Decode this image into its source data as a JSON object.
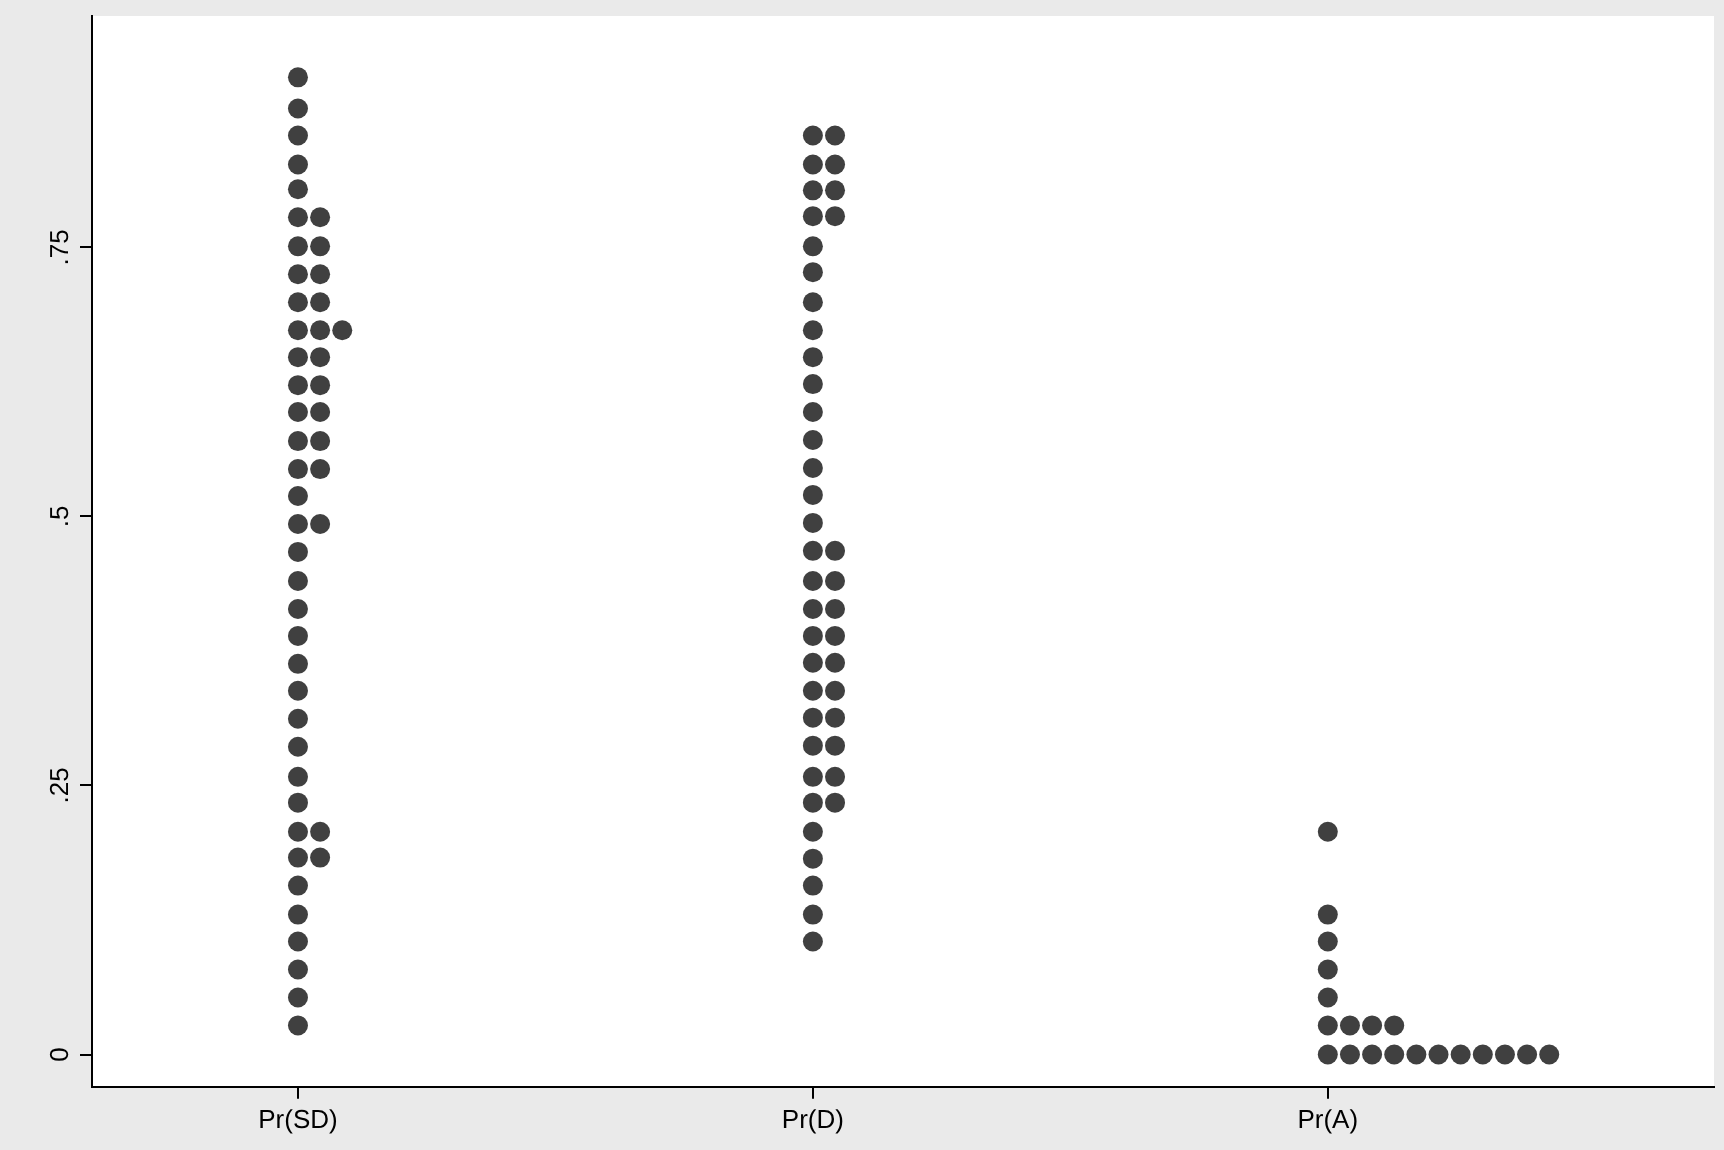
{
  "chart_data": {
    "type": "scatter",
    "marker": "circle",
    "grid": false,
    "legend": false,
    "categories": [
      "Pr(SD)",
      "Pr(D)",
      "Pr(A)"
    ],
    "ylim": [
      -0.03,
      0.965
    ],
    "yticks": [
      {
        "value": 0,
        "label": "0"
      },
      {
        "value": 0.25,
        "label": ".25"
      },
      {
        "value": 0.5,
        "label": ".5"
      },
      {
        "value": 0.75,
        "label": ".75"
      }
    ],
    "series": [
      {
        "color": "#404040",
        "x": [
          "Pr(SD)",
          "Pr(SD)",
          "Pr(SD)",
          "Pr(SD)",
          "Pr(SD)",
          "Pr(SD)",
          "Pr(SD)",
          "Pr(SD)",
          "Pr(SD)",
          "Pr(SD)",
          "Pr(SD)",
          "Pr(SD)",
          "Pr(SD)",
          "Pr(SD)",
          "Pr(SD)",
          "Pr(SD)",
          "Pr(SD)",
          "Pr(SD)",
          "Pr(SD)",
          "Pr(SD)",
          "Pr(SD)",
          "Pr(SD)",
          "Pr(SD)",
          "Pr(SD)",
          "Pr(SD)",
          "Pr(SD)",
          "Pr(SD)",
          "Pr(SD)",
          "Pr(SD)",
          "Pr(SD)",
          "Pr(SD)",
          "Pr(SD)",
          "Pr(SD)",
          "Pr(SD)",
          "Pr(SD)",
          "Pr(SD)",
          "Pr(SD)",
          "Pr(SD)",
          "Pr(SD)",
          "Pr(SD)",
          "Pr(SD)",
          "Pr(SD)",
          "Pr(SD)",
          "Pr(SD)",
          "Pr(SD)",
          "Pr(SD)",
          "Pr(SD)",
          "Pr(SD)",
          "Pr(SD)"
        ],
        "values": [
          0.908,
          0.879,
          0.854,
          0.827,
          0.804,
          0.778,
          0.778,
          0.751,
          0.751,
          0.725,
          0.725,
          0.699,
          0.699,
          0.673,
          0.673,
          0.673,
          0.648,
          0.648,
          0.622,
          0.622,
          0.597,
          0.597,
          0.57,
          0.57,
          0.544,
          0.544,
          0.519,
          0.493,
          0.493,
          0.467,
          0.44,
          0.414,
          0.389,
          0.363,
          0.338,
          0.312,
          0.286,
          0.258,
          0.234,
          0.207,
          0.207,
          0.183,
          0.183,
          0.157,
          0.13,
          0.105,
          0.079,
          0.053,
          0.027
        ]
      },
      {
        "color": "#404040",
        "x": [
          "Pr(D)",
          "Pr(D)",
          "Pr(D)",
          "Pr(D)",
          "Pr(D)",
          "Pr(D)",
          "Pr(D)",
          "Pr(D)",
          "Pr(D)",
          "Pr(D)",
          "Pr(D)",
          "Pr(D)",
          "Pr(D)",
          "Pr(D)",
          "Pr(D)",
          "Pr(D)",
          "Pr(D)",
          "Pr(D)",
          "Pr(D)",
          "Pr(D)",
          "Pr(D)",
          "Pr(D)",
          "Pr(D)",
          "Pr(D)",
          "Pr(D)",
          "Pr(D)",
          "Pr(D)",
          "Pr(D)",
          "Pr(D)",
          "Pr(D)",
          "Pr(D)",
          "Pr(D)",
          "Pr(D)",
          "Pr(D)",
          "Pr(D)",
          "Pr(D)",
          "Pr(D)",
          "Pr(D)",
          "Pr(D)",
          "Pr(D)",
          "Pr(D)",
          "Pr(D)",
          "Pr(D)",
          "Pr(D)"
        ],
        "values": [
          0.854,
          0.854,
          0.827,
          0.827,
          0.803,
          0.803,
          0.779,
          0.779,
          0.751,
          0.727,
          0.699,
          0.673,
          0.648,
          0.623,
          0.597,
          0.571,
          0.545,
          0.52,
          0.494,
          0.468,
          0.468,
          0.44,
          0.44,
          0.414,
          0.414,
          0.389,
          0.389,
          0.364,
          0.364,
          0.338,
          0.338,
          0.313,
          0.313,
          0.287,
          0.287,
          0.258,
          0.258,
          0.234,
          0.234,
          0.207,
          0.182,
          0.157,
          0.13,
          0.105
        ]
      },
      {
        "color": "#404040",
        "x": [
          "Pr(A)",
          "Pr(A)",
          "Pr(A)",
          "Pr(A)",
          "Pr(A)",
          "Pr(A)",
          "Pr(A)",
          "Pr(A)",
          "Pr(A)",
          "Pr(A)",
          "Pr(A)",
          "Pr(A)",
          "Pr(A)",
          "Pr(A)",
          "Pr(A)",
          "Pr(A)",
          "Pr(A)",
          "Pr(A)",
          "Pr(A)",
          "Pr(A)"
        ],
        "values": [
          0.207,
          0.13,
          0.105,
          0.079,
          0.053,
          0.027,
          0.027,
          0.027,
          0.027,
          0,
          0,
          0,
          0,
          0,
          0,
          0,
          0,
          0,
          0,
          0
        ]
      }
    ]
  }
}
